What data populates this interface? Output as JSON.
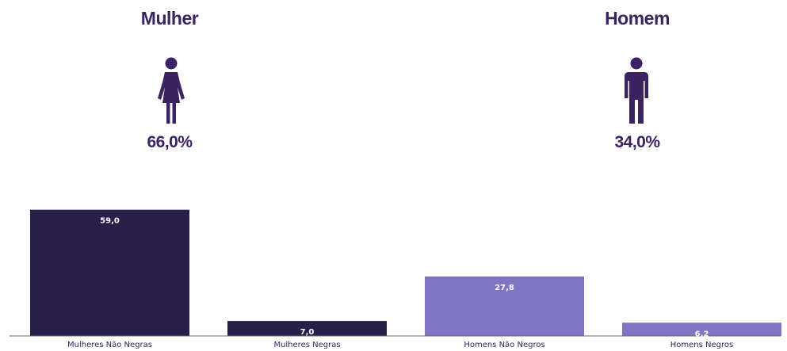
{
  "genders": {
    "female": {
      "title": "Mulher",
      "percent": "66,0%",
      "icon": "female-person-icon"
    },
    "male": {
      "title": "Homem",
      "percent": "34,0%",
      "icon": "male-person-icon"
    }
  },
  "colors": {
    "dark": "#2a1f4a",
    "light": "#8075c2",
    "text": "#3b2261"
  },
  "chart_data": {
    "type": "bar",
    "categories": [
      "Mulheres Não Negras",
      "Mulheres Negras",
      "Homens Não Negros",
      "Homens Negros"
    ],
    "values": [
      59.0,
      7.0,
      27.8,
      6.2
    ],
    "value_labels": [
      "59,0",
      "7,0",
      "27,8",
      "6,2"
    ],
    "bar_colors": [
      "#2a1f4a",
      "#2a1f4a",
      "#8075c2",
      "#8075c2"
    ],
    "title": "",
    "xlabel": "",
    "ylabel": "",
    "ylim": [
      0,
      70
    ],
    "grid": false
  }
}
